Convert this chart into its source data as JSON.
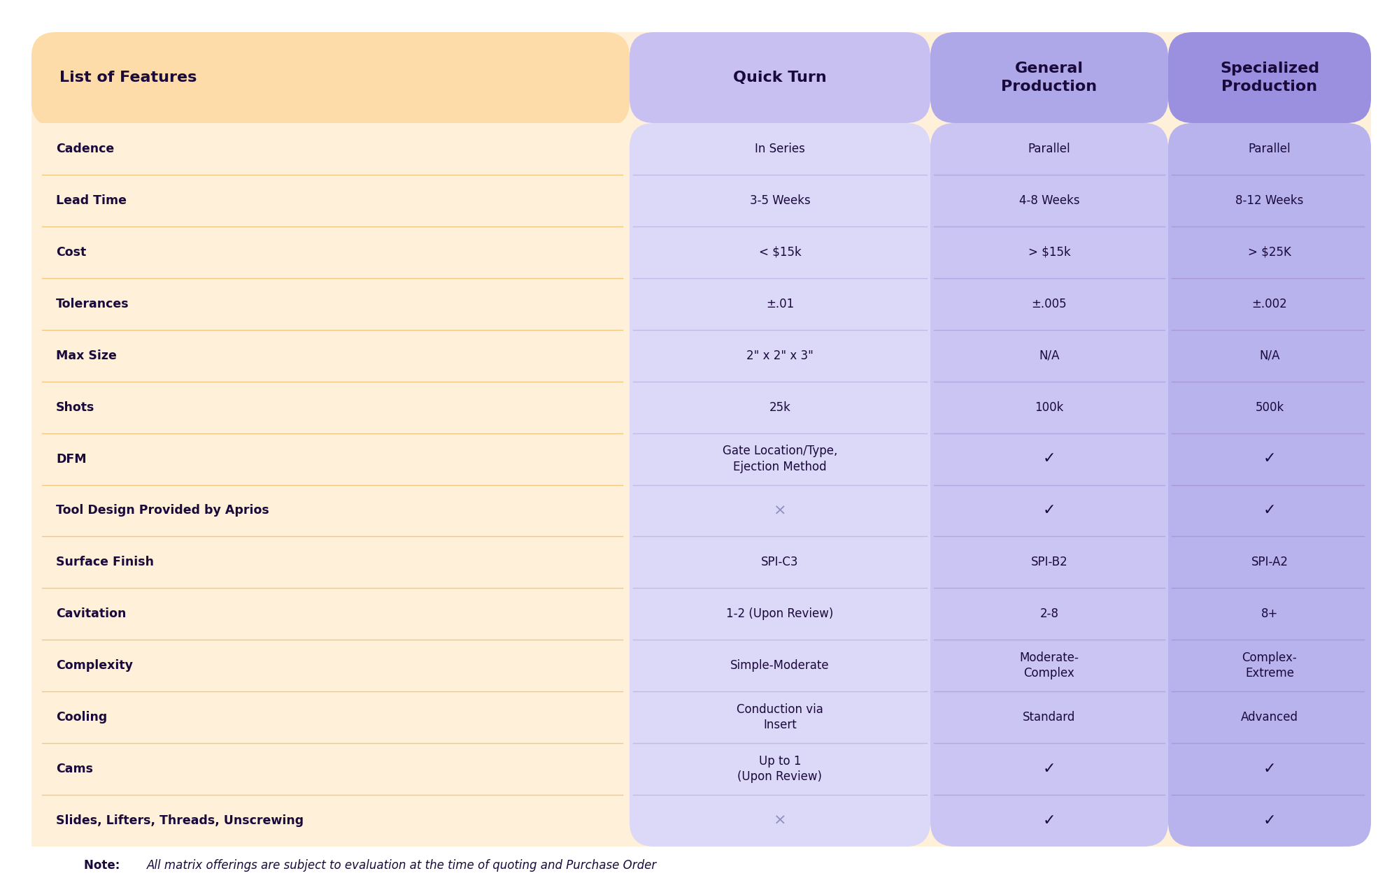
{
  "background_color": "#ffffff",
  "header_bg_orange": "#FDDCAA",
  "body_bg_orange": "#FEF0D9",
  "col1_bg_light": "#DDD8F5",
  "col2_bg_light": "#C8C0F0",
  "col3_bg_light": "#B8B0E8",
  "col1_header_bg": "#C8C2F0",
  "col2_header_bg": "#B0A8E8",
  "col3_header_bg": "#A098E0",
  "text_dark": "#1a0a3c",
  "features": [
    "Cadence",
    "Lead Time",
    "Cost",
    "Tolerances",
    "Max Size",
    "Shots",
    "DFM",
    "Tool Design Provided by Aprios",
    "Surface Finish",
    "Cavitation",
    "Complexity",
    "Cooling",
    "Cams",
    "Slides, Lifters, Threads, Unscrewing"
  ],
  "quick_turn": [
    "In Series",
    "3-5 Weeks",
    "< $15k",
    "±.01",
    "2\" x 2\" x 3\"",
    "25k",
    "Gate Location/Type,\nEjection Method",
    "×",
    "SPI-C3",
    "1-2 (Upon Review)",
    "Simple-Moderate",
    "Conduction via\nInsert",
    "Up to 1\n(Upon Review)",
    "×"
  ],
  "general_prod": [
    "Parallel",
    "4-8 Weeks",
    "> $15k",
    "±.005",
    "N/A",
    "100k",
    "✓",
    "✓",
    "SPI-B2",
    "2-8",
    "Moderate-\nComplex",
    "Standard",
    "✓",
    "✓"
  ],
  "specialized_prod": [
    "Parallel",
    "8-12 Weeks",
    "> $25K",
    "±.002",
    "N/A",
    "500k",
    "✓",
    "✓",
    "SPI-A2",
    "8+",
    "Complex-\nExtreme",
    "Advanced",
    "✓",
    "✓"
  ],
  "note": "All matrix offerings are subject to evaluation at the time of quoting and Purchase Order"
}
